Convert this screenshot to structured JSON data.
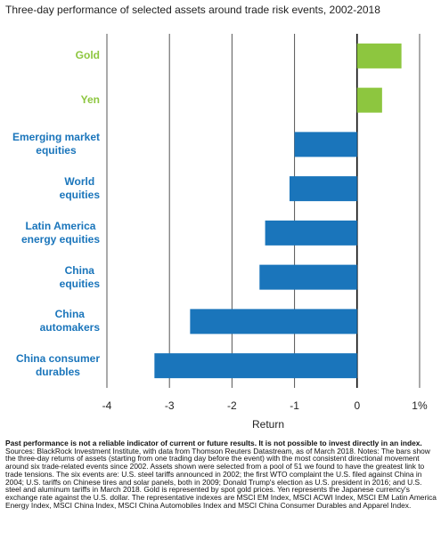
{
  "chart_data": {
    "type": "barh",
    "title": "Three-day performance of selected assets around trade risk events, 2002-2018",
    "categories": [
      "Gold",
      "Yen",
      "Emerging market\nequities",
      "World\nequities",
      "Latin America\nenergy equities",
      "China\nequities",
      "China\nautomakers",
      "China consumer\ndurables"
    ],
    "values": [
      0.71,
      0.4,
      -1.0,
      -1.08,
      -1.47,
      -1.56,
      -2.67,
      -3.24
    ],
    "colors": [
      "#8dc63f",
      "#8dc63f",
      "#1a75bb",
      "#1a75bb",
      "#1a75bb",
      "#1a75bb",
      "#1a75bb",
      "#1a75bb"
    ],
    "xlim": [
      -4,
      1.1
    ],
    "xticks": [
      -4,
      -3,
      -2,
      -1,
      0,
      {
        "value": 1,
        "label": "1%"
      }
    ],
    "xlabel": "Return",
    "grid": true
  },
  "footnote": {
    "bold": "Past performance is not a reliable indicator of current or future results. It is not possible to invest directly in an index.",
    "text": "Sources: BlackRock Investment Institute, with data from Thomson Reuters Datastream, as of March 2018. Notes: The bars show the three-day returns of assets (starting from one trading day before the event) with the most consistent directional movement around six trade-related events since 2002. Assets shown were selected from a pool of 51 we found to have the greatest link to trade tensions. The six events are: U.S. steel tariffs announced in 2002; the first WTO complaint the U.S. filed against China in 2004; U.S. tariffs on Chinese tires and solar panels, both in 2009; Donald Trump's election as U.S. president in 2016; and U.S. steel and aluminum tariffs in March 2018. Gold is represented by spot gold prices. Yen represents the Japanese currency's exchange rate against the U.S. dollar. The representative indexes are MSCI EM Index, MSCI ACWI Index, MSCI EM Latin America Energy Index, MSCI China Index, MSCI China Automobiles Index and MSCI China Consumer Durables and Apparel Index."
  }
}
